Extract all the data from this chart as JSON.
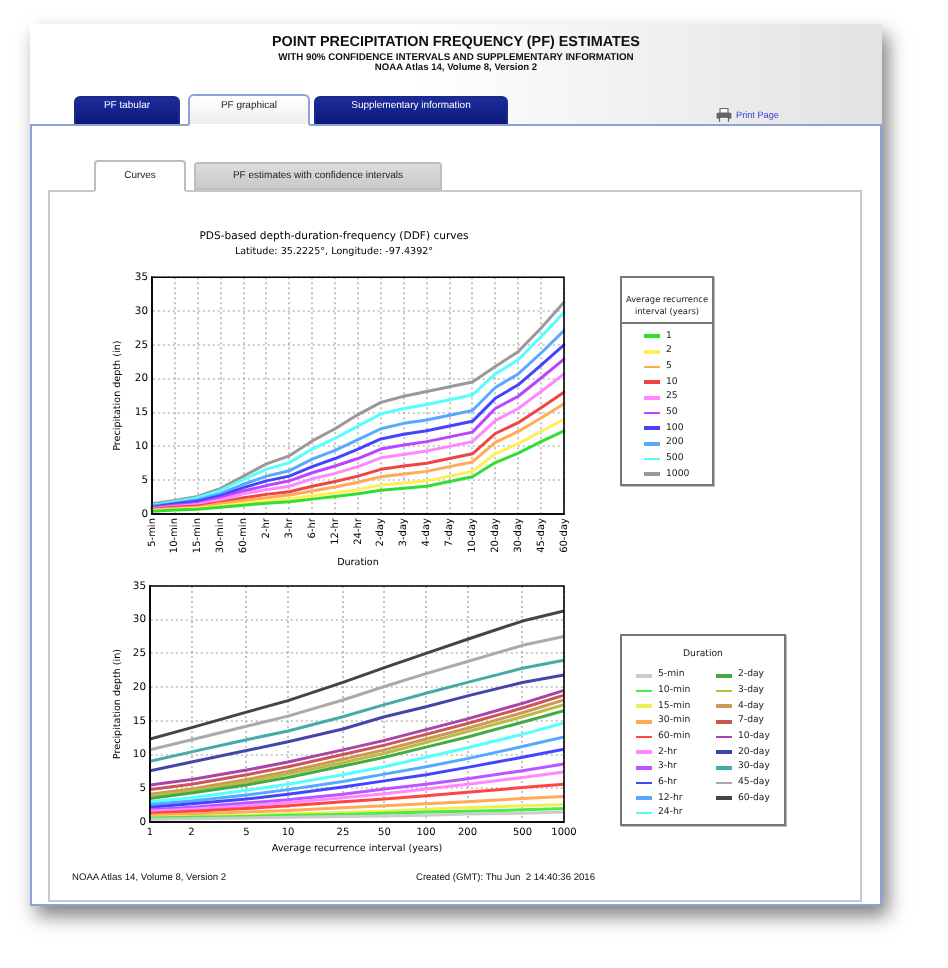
{
  "chart_data": [
    {
      "type": "line",
      "title": "PDS-based depth-duration-frequency (DDF) curves",
      "subtitle": "Latitude: 35.2225°, Longitude: -97.4392°",
      "xlabel": "Duration",
      "ylabel": "Precipitation depth (in)",
      "legend_title": "Average recurrence interval (years)",
      "legend": "right",
      "grid": true,
      "categories": [
        "5-min",
        "10-min",
        "15-min",
        "30-min",
        "60-min",
        "2-hr",
        "3-hr",
        "6-hr",
        "12-hr",
        "24-hr",
        "2-day",
        "3-day",
        "4-day",
        "7-day",
        "10-day",
        "20-day",
        "30-day",
        "45-day",
        "60-day"
      ],
      "ylim": [
        0,
        35
      ],
      "yticks": [
        0,
        5,
        10,
        15,
        20,
        25,
        30,
        35
      ],
      "series": [
        {
          "name": "1",
          "color": "#33dd33",
          "values": [
            0.4,
            0.6,
            0.7,
            1.0,
            1.3,
            1.6,
            1.8,
            2.2,
            2.6,
            3.0,
            3.5,
            3.8,
            4.1,
            4.8,
            5.5,
            7.6,
            9.0,
            10.7,
            12.3
          ]
        },
        {
          "name": "2",
          "color": "#ffee55",
          "values": [
            0.5,
            0.7,
            0.8,
            1.2,
            1.6,
            1.9,
            2.2,
            2.7,
            3.1,
            3.6,
            4.3,
            4.6,
            4.9,
            5.6,
            6.3,
            8.9,
            10.4,
            12.2,
            14.0
          ]
        },
        {
          "name": "5",
          "color": "#ffaa55",
          "values": [
            0.6,
            0.8,
            1.0,
            1.5,
            2.0,
            2.4,
            2.8,
            3.4,
            4.0,
            4.7,
            5.5,
            5.9,
            6.3,
            7.0,
            7.7,
            10.6,
            12.2,
            14.2,
            16.3
          ]
        },
        {
          "name": "10",
          "color": "#ee4444",
          "values": [
            0.7,
            1.0,
            1.2,
            1.7,
            2.4,
            2.9,
            3.3,
            4.1,
            4.8,
            5.6,
            6.6,
            7.1,
            7.5,
            8.2,
            8.9,
            11.9,
            13.5,
            15.7,
            18.0
          ]
        },
        {
          "name": "25",
          "color": "#ff88ff",
          "values": [
            0.8,
            1.1,
            1.4,
            2.1,
            3.0,
            3.6,
            4.1,
            5.2,
            6.0,
            7.0,
            8.3,
            8.8,
            9.3,
            10.0,
            10.7,
            13.8,
            15.6,
            18.1,
            20.7
          ]
        },
        {
          "name": "50",
          "color": "#bb44ff",
          "values": [
            0.9,
            1.3,
            1.6,
            2.4,
            3.4,
            4.2,
            4.9,
            6.1,
            7.1,
            8.2,
            9.6,
            10.2,
            10.7,
            11.4,
            12.1,
            15.6,
            17.4,
            20.1,
            22.9
          ]
        },
        {
          "name": "100",
          "color": "#4444ff",
          "values": [
            1.0,
            1.5,
            1.9,
            2.7,
            3.9,
            4.9,
            5.6,
            7.0,
            8.2,
            9.6,
            11.1,
            11.8,
            12.3,
            13.0,
            13.7,
            17.1,
            19.1,
            22.0,
            25.0
          ]
        },
        {
          "name": "200",
          "color": "#55aaff",
          "values": [
            1.2,
            1.6,
            2.1,
            3.0,
            4.4,
            5.6,
            6.4,
            8.1,
            9.4,
            11.0,
            12.6,
            13.4,
            13.9,
            14.6,
            15.3,
            18.7,
            20.7,
            23.8,
            27.1
          ]
        },
        {
          "name": "500",
          "color": "#55ffff",
          "values": [
            1.3,
            1.8,
            2.4,
            3.5,
            5.1,
            6.6,
            7.6,
            9.6,
            11.2,
            13.0,
            14.8,
            15.6,
            16.2,
            16.9,
            17.6,
            20.7,
            22.8,
            26.2,
            29.8
          ]
        },
        {
          "name": "1000",
          "color": "#999999",
          "values": [
            1.5,
            2.0,
            2.6,
            3.8,
            5.6,
            7.4,
            8.6,
            10.8,
            12.6,
            14.7,
            16.5,
            17.4,
            18.1,
            18.8,
            19.5,
            21.8,
            24.0,
            27.5,
            31.3
          ]
        }
      ],
      "annotations": [
        "POINT PRECIPITATION FREQUENCY (PF) ESTIMATES",
        "WITH 90% CONFIDENCE INTERVALS AND SUPPLEMENTARY INFORMATION",
        "NOAA Atlas 14, Volume 8, Version 2",
        "PF tabular",
        "PF graphical",
        "Supplementary information",
        "Print Page",
        "Curves",
        "PF estimates with confidence intervals"
      ]
    },
    {
      "type": "line",
      "xlabel": "Average recurrence interval (years)",
      "ylabel": "Precipitation depth (in)",
      "legend_title": "Duration",
      "legend": "right",
      "grid": true,
      "log": "x",
      "x": [
        1,
        2,
        5,
        10,
        25,
        50,
        100,
        200,
        500,
        1000
      ],
      "xlim": [
        1,
        1000
      ],
      "xticks": [
        1,
        2,
        5,
        10,
        25,
        50,
        100,
        200,
        500,
        1000
      ],
      "ylim": [
        0,
        35
      ],
      "yticks": [
        0,
        5,
        10,
        15,
        20,
        25,
        30,
        35
      ],
      "series": [
        {
          "name": "5-min",
          "color": "#cccccc",
          "values": [
            0.4,
            0.5,
            0.6,
            0.7,
            0.8,
            0.9,
            1.0,
            1.2,
            1.3,
            1.5
          ]
        },
        {
          "name": "10-min",
          "color": "#44ee44",
          "values": [
            0.6,
            0.7,
            0.8,
            1.0,
            1.1,
            1.3,
            1.5,
            1.6,
            1.8,
            2.0
          ]
        },
        {
          "name": "15-min",
          "color": "#eeee55",
          "values": [
            0.7,
            0.8,
            1.0,
            1.2,
            1.4,
            1.6,
            1.9,
            2.1,
            2.4,
            2.6
          ]
        },
        {
          "name": "30-min",
          "color": "#ffaa55",
          "values": [
            1.0,
            1.2,
            1.5,
            1.7,
            2.1,
            2.4,
            2.7,
            3.0,
            3.5,
            3.8
          ]
        },
        {
          "name": "60-min",
          "color": "#ff4444",
          "values": [
            1.3,
            1.6,
            2.0,
            2.4,
            3.0,
            3.4,
            3.9,
            4.4,
            5.1,
            5.6
          ]
        },
        {
          "name": "2-hr",
          "color": "#ff88ff",
          "values": [
            1.6,
            1.9,
            2.4,
            2.9,
            3.6,
            4.2,
            4.9,
            5.6,
            6.6,
            7.4
          ]
        },
        {
          "name": "3-hr",
          "color": "#bb55ff",
          "values": [
            1.8,
            2.2,
            2.8,
            3.3,
            4.1,
            4.9,
            5.6,
            6.4,
            7.6,
            8.6
          ]
        },
        {
          "name": "6-hr",
          "color": "#4444ff",
          "values": [
            2.2,
            2.7,
            3.4,
            4.1,
            5.2,
            6.1,
            7.0,
            8.1,
            9.6,
            10.8
          ]
        },
        {
          "name": "12-hr",
          "color": "#55aaff",
          "values": [
            2.6,
            3.1,
            4.0,
            4.8,
            6.0,
            7.1,
            8.2,
            9.4,
            11.2,
            12.6
          ]
        },
        {
          "name": "24-hr",
          "color": "#55ffff",
          "values": [
            3.0,
            3.6,
            4.7,
            5.6,
            7.0,
            8.2,
            9.6,
            11.0,
            13.0,
            14.7
          ]
        },
        {
          "name": "2-day",
          "color": "#44aa44",
          "values": [
            3.5,
            4.3,
            5.5,
            6.6,
            8.3,
            9.6,
            11.1,
            12.6,
            14.8,
            16.5
          ]
        },
        {
          "name": "3-day",
          "color": "#bbbb44",
          "values": [
            3.8,
            4.6,
            5.9,
            7.1,
            8.8,
            10.2,
            11.8,
            13.4,
            15.6,
            17.4
          ]
        },
        {
          "name": "4-day",
          "color": "#cc9955",
          "values": [
            4.1,
            4.9,
            6.3,
            7.5,
            9.3,
            10.7,
            12.3,
            13.9,
            16.2,
            18.1
          ]
        },
        {
          "name": "7-day",
          "color": "#cc5555",
          "values": [
            4.8,
            5.6,
            7.0,
            8.2,
            10.0,
            11.4,
            13.0,
            14.6,
            16.9,
            18.8
          ]
        },
        {
          "name": "10-day",
          "color": "#aa44aa",
          "values": [
            5.5,
            6.3,
            7.7,
            8.9,
            10.7,
            12.1,
            13.7,
            15.3,
            17.6,
            19.5
          ]
        },
        {
          "name": "20-day",
          "color": "#4444aa",
          "values": [
            7.6,
            8.9,
            10.6,
            11.9,
            13.8,
            15.6,
            17.1,
            18.7,
            20.7,
            21.8
          ]
        },
        {
          "name": "30-day",
          "color": "#44aaaa",
          "values": [
            9.0,
            10.4,
            12.2,
            13.5,
            15.6,
            17.4,
            19.1,
            20.7,
            22.8,
            24.0
          ]
        },
        {
          "name": "45-day",
          "color": "#aaaaaa",
          "values": [
            10.7,
            12.2,
            14.2,
            15.7,
            18.1,
            20.1,
            22.0,
            23.8,
            26.2,
            27.5
          ]
        },
        {
          "name": "60-day",
          "color": "#444444",
          "values": [
            12.3,
            14.0,
            16.3,
            18.0,
            20.7,
            22.9,
            25.0,
            27.1,
            29.8,
            31.3
          ]
        }
      ],
      "annotations": [
        "NOAA Atlas 14, Volume 8, Version 2",
        "Created (GMT): Thu Jun  2 14:40:36 2016"
      ]
    }
  ]
}
